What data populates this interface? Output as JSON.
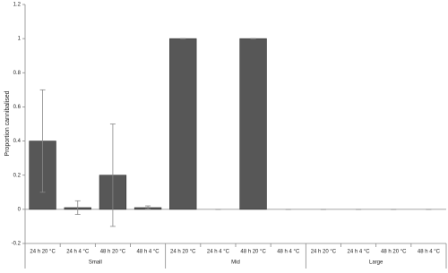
{
  "chart_data": {
    "type": "bar",
    "y_label": "Proportion cannibalised",
    "color": "#575757",
    "ylim": [
      -0.2,
      1.2
    ],
    "yticks": [
      -0.2,
      0,
      0.2,
      0.4,
      0.6,
      0.8,
      1,
      1.2
    ],
    "groups": [
      {
        "name": "Small",
        "categories": [
          "24 h 20 °C",
          "24 h 4 °C",
          "48 h 20 °C",
          "48 h 4 °C"
        ],
        "values": [
          0.4,
          0.01,
          0.2,
          0.01
        ],
        "errors": [
          0.3,
          0.04,
          0.3,
          0.01
        ]
      },
      {
        "name": "Mid",
        "categories": [
          "24 h 20 °C",
          "24 h 4 °C",
          "48 h 20 °C",
          "48 h 4 °C"
        ],
        "values": [
          1,
          0,
          1,
          0
        ],
        "errors": [
          0,
          0,
          0,
          0
        ]
      },
      {
        "name": "Large",
        "categories": [
          "24 h 20 °C",
          "24 h 4 °C",
          "48 h 20 °C",
          "48 h 4 °C"
        ],
        "values": [
          0,
          0,
          0,
          0
        ],
        "errors": [
          0,
          0,
          0,
          0
        ]
      }
    ]
  }
}
